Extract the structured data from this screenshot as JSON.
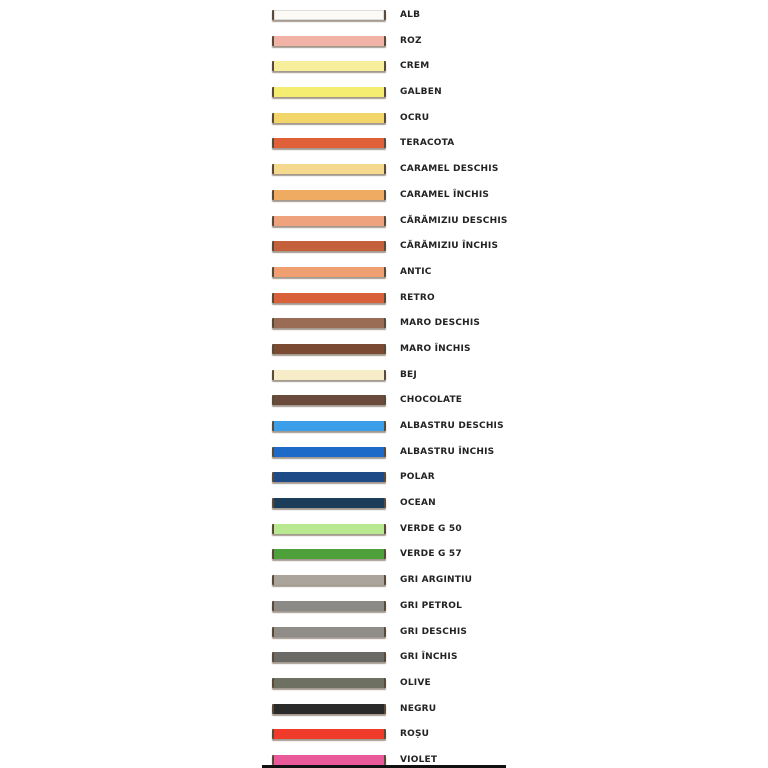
{
  "colors": [
    {
      "label": "ALB",
      "color": "#fbfaf5"
    },
    {
      "label": "ROZ",
      "color": "#f0b3a6"
    },
    {
      "label": "CREM",
      "color": "#f6ee9a"
    },
    {
      "label": "GALBEN",
      "color": "#f5ec72"
    },
    {
      "label": "OCRU",
      "color": "#f2d66a"
    },
    {
      "label": "TERACOTA",
      "color": "#e0603a"
    },
    {
      "label": "CARAMEL DESCHIS",
      "color": "#f4d98e"
    },
    {
      "label": "CARAMEL ÎNCHIS",
      "color": "#f0ab62"
    },
    {
      "label": "CĂRĂMIZIU DESCHIS",
      "color": "#eea37e"
    },
    {
      "label": "CĂRĂMIZIU ÎNCHIS",
      "color": "#c4603c"
    },
    {
      "label": "ANTIC",
      "color": "#f0a070"
    },
    {
      "label": "RETRO",
      "color": "#d8603a"
    },
    {
      "label": "MARO DESCHIS",
      "color": "#9a6c55"
    },
    {
      "label": "MARO ÎNCHIS",
      "color": "#7a4a32"
    },
    {
      "label": "BEJ",
      "color": "#f6ecc8"
    },
    {
      "label": "CHOCOLATE",
      "color": "#6a4a3a"
    },
    {
      "label": "ALBASTRU DESCHIS",
      "color": "#3a9fe8"
    },
    {
      "label": "ALBASTRU ÎNCHIS",
      "color": "#1e6ac8"
    },
    {
      "label": "POLAR",
      "color": "#1e4a88"
    },
    {
      "label": "OCEAN",
      "color": "#1c3d5a"
    },
    {
      "label": "VERDE G 50",
      "color": "#b8e890"
    },
    {
      "label": "VERDE G 57",
      "color": "#4ea03a"
    },
    {
      "label": "GRI ARGINTIU",
      "color": "#aaa49c"
    },
    {
      "label": "GRI PETROL",
      "color": "#8c8a86"
    },
    {
      "label": "GRI DESCHIS",
      "color": "#908c88"
    },
    {
      "label": "GRI ÎNCHIS",
      "color": "#6c6a66"
    },
    {
      "label": "OLIVE",
      "color": "#6e7062"
    },
    {
      "label": "NEGRU",
      "color": "#2a2a2a"
    },
    {
      "label": "ROȘU",
      "color": "#f03a2a"
    },
    {
      "label": "VIOLET",
      "color": "#e85a9a"
    }
  ]
}
